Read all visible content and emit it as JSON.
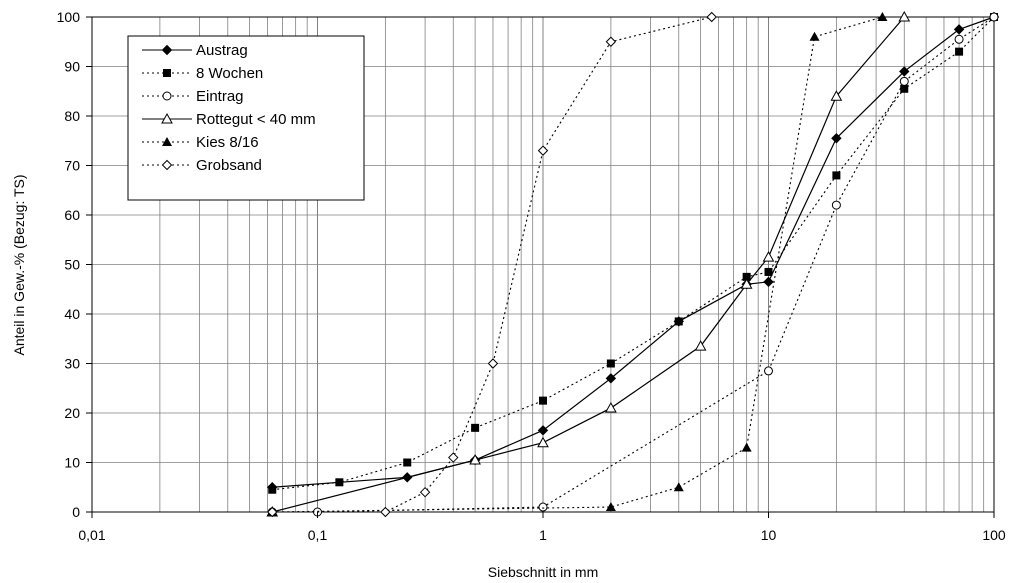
{
  "chart_data": {
    "type": "line",
    "xscale": "log",
    "xlim": [
      0.01,
      100
    ],
    "ylim": [
      0,
      100
    ],
    "grid": true,
    "legend_position": "top-left",
    "xlabel": "Siebschnitt in mm",
    "ylabel": "Anteil in Gew.-% (Bezug: TS)",
    "x_ticks": [
      0.01,
      0.1,
      1,
      10,
      100
    ],
    "x_tick_labels": [
      "0,01",
      "0,1",
      "1",
      "10",
      "100"
    ],
    "y_ticks": [
      0,
      10,
      20,
      30,
      40,
      50,
      60,
      70,
      80,
      90,
      100
    ],
    "y_tick_labels": [
      "0",
      "10",
      "20",
      "30",
      "40",
      "50",
      "60",
      "70",
      "80",
      "90",
      "100"
    ],
    "series": [
      {
        "name": "Austrag",
        "line": "solid",
        "marker": "diamond-filled",
        "x": [
          0.063,
          0.25,
          0.5,
          1,
          2,
          4,
          8,
          10,
          20,
          40,
          70,
          100
        ],
        "y": [
          5,
          7,
          10.5,
          16.5,
          27,
          38.5,
          46,
          46.5,
          75.5,
          89,
          97.5,
          100
        ]
      },
      {
        "name": "8 Wochen",
        "line": "dotted",
        "marker": "square-filled",
        "x": [
          0.063,
          0.125,
          0.25,
          0.5,
          1,
          2,
          4,
          8,
          10,
          20,
          40,
          70,
          100
        ],
        "y": [
          4.5,
          6,
          10,
          17,
          22.5,
          30,
          38.5,
          47.5,
          48.5,
          68,
          85.5,
          93,
          100
        ]
      },
      {
        "name": "Eintrag",
        "line": "dotted",
        "marker": "circle-open",
        "x": [
          0.063,
          0.1,
          1,
          10,
          20,
          40,
          70,
          100
        ],
        "y": [
          0,
          0,
          1,
          28.5,
          62,
          87,
          95.5,
          100
        ]
      },
      {
        "name": "Rottegut < 40 mm",
        "line": "solid",
        "marker": "triangle-open",
        "x": [
          0.063,
          0.5,
          1,
          2,
          5,
          8,
          10,
          20,
          40
        ],
        "y": [
          0,
          10.5,
          14,
          21,
          33.5,
          46,
          51.5,
          84,
          100
        ]
      },
      {
        "name": "Kies 8/16",
        "line": "dotted",
        "marker": "triangle-filled",
        "x": [
          0.063,
          2,
          4,
          8,
          16,
          32
        ],
        "y": [
          0,
          1,
          5,
          13,
          96,
          100
        ]
      },
      {
        "name": "Grobsand",
        "line": "dotted",
        "marker": "diamond-open",
        "x": [
          0.063,
          0.2,
          0.3,
          0.4,
          0.6,
          1,
          2,
          5.6
        ],
        "y": [
          0,
          0,
          4,
          11,
          30,
          73,
          95,
          100
        ]
      }
    ]
  }
}
